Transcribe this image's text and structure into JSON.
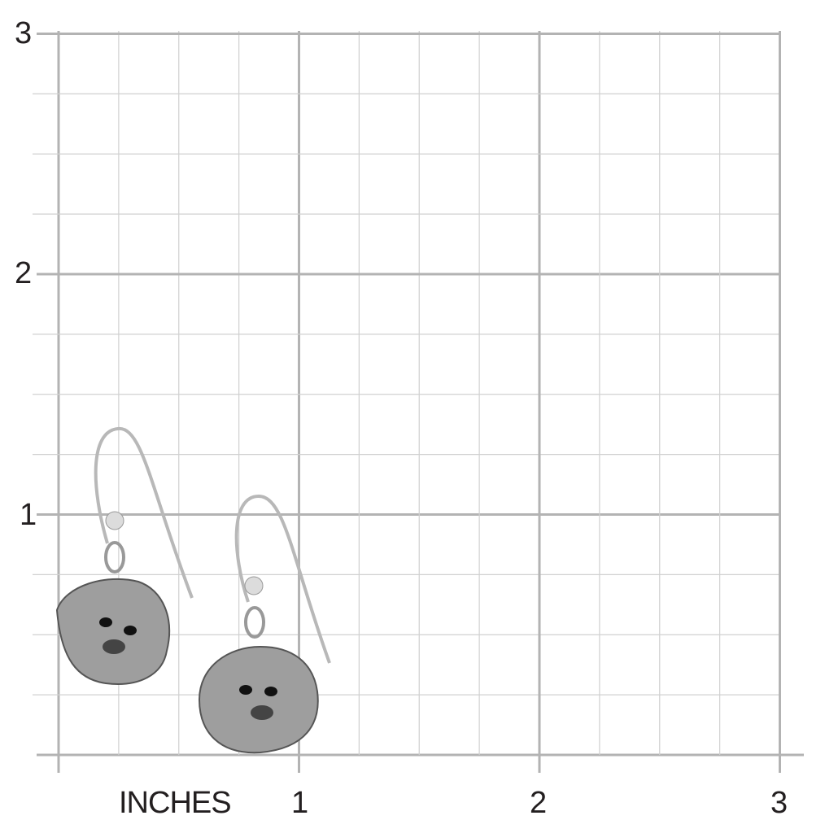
{
  "axis": {
    "unit_label": "INCHES",
    "x_ticks": [
      "1",
      "2",
      "3"
    ],
    "y_ticks": [
      "1",
      "2",
      "3"
    ],
    "range_inches": [
      0,
      3
    ],
    "minor_step_inches": 0.25
  },
  "colors": {
    "grid_major": "#b3b3b3",
    "grid_minor": "#d0d0d0",
    "text": "#231f20",
    "silver": "#a9a9a9",
    "silver_dark": "#4a4a4a"
  },
  "product": {
    "subject": "earrings",
    "count": 2
  }
}
